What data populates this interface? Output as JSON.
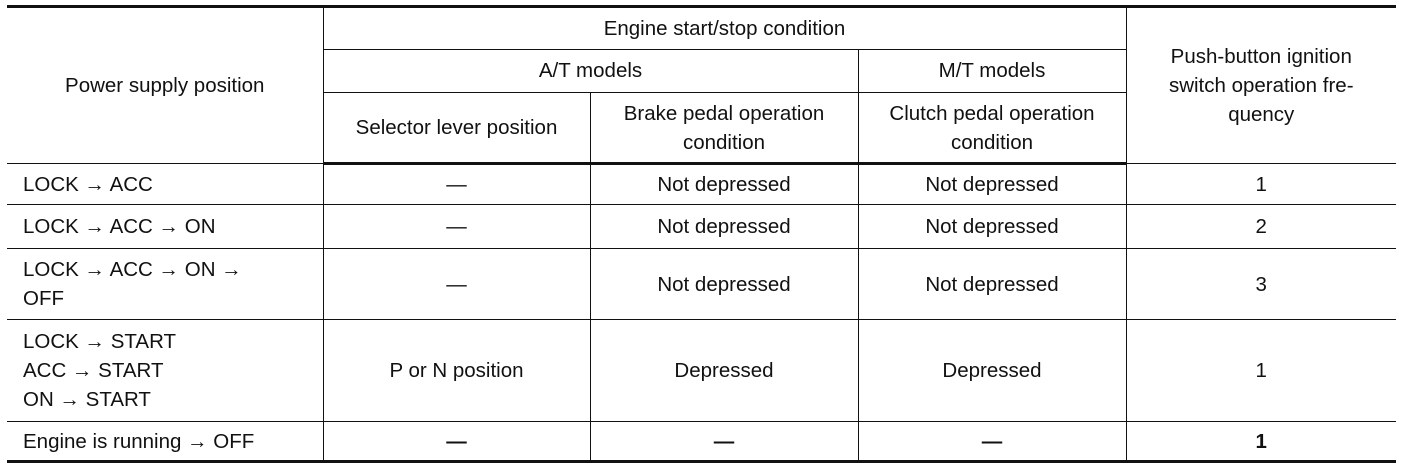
{
  "headers": {
    "power_supply_position": "Power supply position",
    "engine_condition": "Engine start/stop condition",
    "at_models": "A/T models",
    "mt_models": "M/T models",
    "selector_lever_position": "Selector lever position",
    "brake_pedal_condition": "Brake pedal operation condition",
    "clutch_pedal_condition": "Clutch pedal operation condition",
    "push_button_frequency": "Push-button ignition switch operation fre-quency"
  },
  "rows": [
    {
      "power": [
        "LOCK → ACC"
      ],
      "selector": "—",
      "brake": "Not depressed",
      "clutch": "Not depressed",
      "frequency": "1"
    },
    {
      "power": [
        "LOCK → ACC → ON"
      ],
      "selector": "—",
      "brake": "Not depressed",
      "clutch": "Not depressed",
      "frequency": "2"
    },
    {
      "power": [
        "LOCK → ACC → ON → OFF"
      ],
      "selector": "—",
      "brake": "Not depressed",
      "clutch": "Not depressed",
      "frequency": "3"
    },
    {
      "power": [
        "LOCK → START",
        "ACC → START",
        "ON → START"
      ],
      "selector": "P or N position",
      "brake": "Depressed",
      "clutch": "Depressed",
      "frequency": "1"
    },
    {
      "power": [
        "Engine is running → OFF"
      ],
      "selector": "—",
      "brake": "—",
      "clutch": "—",
      "frequency": "1"
    }
  ]
}
